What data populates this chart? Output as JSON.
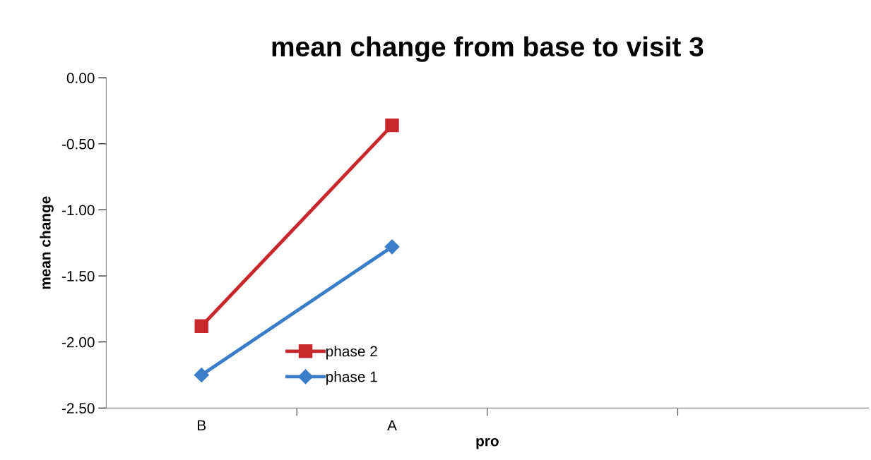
{
  "chart_data": {
    "type": "line",
    "title": "mean change from base to visit 3",
    "xlabel": "pro",
    "ylabel": "mean change",
    "categories": [
      "B",
      "A",
      null,
      null
    ],
    "series": [
      {
        "name": "phase 2",
        "color": "#c8282c",
        "marker": "square",
        "values": [
          -1.88,
          -0.36,
          null,
          null
        ]
      },
      {
        "name": "phase 1",
        "color": "#3a7dc8",
        "marker": "diamond",
        "values": [
          -2.25,
          -1.28,
          null,
          null
        ]
      }
    ],
    "ylim": [
      -2.5,
      0
    ],
    "yticks": [
      {
        "value": 0,
        "label": "0.00"
      },
      {
        "value": -0.5,
        "label": "-0.50"
      },
      {
        "value": -1.0,
        "label": "-1.00"
      },
      {
        "value": -1.5,
        "label": "-1.50"
      },
      {
        "value": -2.0,
        "label": "-2.00"
      },
      {
        "value": -2.5,
        "label": "-2.50"
      }
    ],
    "grid": false,
    "legend": "bottom",
    "line_style": "solid"
  }
}
